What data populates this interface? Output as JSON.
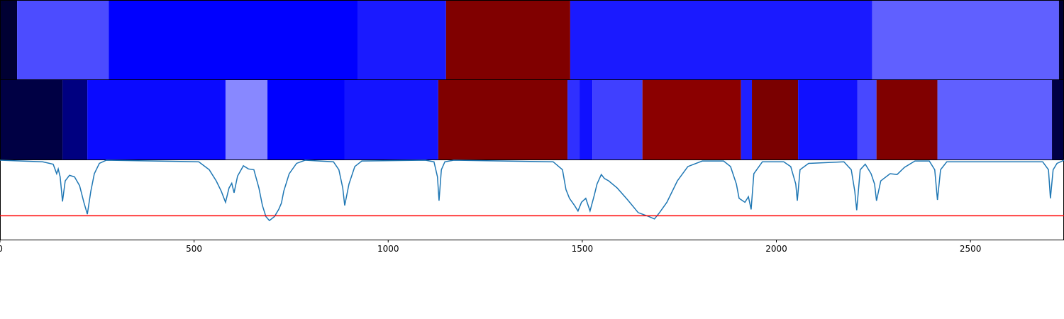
{
  "chart_data": {
    "type": "line",
    "xlim": [
      0,
      2741
    ],
    "xticks": [
      0,
      500,
      1000,
      1500,
      2000,
      2500
    ],
    "ylim": [
      0,
      1
    ],
    "bands": [
      {
        "boundaries": [
          0,
          44,
          280,
          921,
          1149,
          1469,
          2247,
          2728,
          2741
        ],
        "colors": [
          "#000033",
          "#4c4cff",
          "#0000ff",
          "#1a1aff",
          "#800000",
          "#1a1aff",
          "#6060ff",
          "#000033"
        ]
      },
      {
        "boundaries": [
          0,
          161,
          225,
          581,
          689,
          888,
          1129,
          1462,
          1493,
          1526,
          1655,
          1909,
          1937,
          2056,
          2209,
          2258,
          2415,
          2710,
          2741
        ],
        "colors": [
          "#000044",
          "#000080",
          "#0a0aff",
          "#8888ff",
          "#0000ff",
          "#1414ff",
          "#800000",
          "#3030ff",
          "#1010ff",
          "#4040ff",
          "#8b0000",
          "#2020ff",
          "#7a0000",
          "#1010ff",
          "#4848ff",
          "#800000",
          "#6060ff",
          "#000044"
        ]
      }
    ],
    "x": [
      0,
      110,
      137,
      146,
      150,
      155,
      161,
      168,
      179,
      192,
      205,
      216,
      225,
      234,
      243,
      256,
      274,
      512,
      539,
      557,
      570,
      581,
      590,
      597,
      603,
      612,
      627,
      640,
      654,
      667,
      676,
      685,
      694,
      707,
      718,
      725,
      731,
      745,
      764,
      786,
      859,
      873,
      883,
      888,
      899,
      914,
      932,
      1096,
      1118,
      1127,
      1131,
      1137,
      1146,
      1169,
      1425,
      1449,
      1458,
      1467,
      1480,
      1489,
      1498,
      1509,
      1520,
      1531,
      1538,
      1549,
      1557,
      1568,
      1590,
      1617,
      1644,
      1672,
      1686,
      1699,
      1718,
      1745,
      1772,
      1809,
      1864,
      1882,
      1897,
      1904,
      1919,
      1928,
      1935,
      1942,
      1964,
      2019,
      2037,
      2050,
      2054,
      2061,
      2083,
      2174,
      2193,
      2202,
      2207,
      2216,
      2229,
      2244,
      2253,
      2258,
      2269,
      2293,
      2311,
      2330,
      2357,
      2394,
      2408,
      2415,
      2423,
      2439,
      2686,
      2701,
      2706,
      2713,
      2723,
      2741
    ],
    "series": [
      {
        "color": "#1f77b4",
        "values": [
          1.0,
          0.98,
          0.95,
          0.83,
          0.89,
          0.79,
          0.48,
          0.74,
          0.81,
          0.79,
          0.68,
          0.47,
          0.32,
          0.61,
          0.83,
          0.96,
          1.0,
          0.98,
          0.88,
          0.74,
          0.61,
          0.47,
          0.65,
          0.71,
          0.59,
          0.8,
          0.93,
          0.89,
          0.88,
          0.65,
          0.43,
          0.29,
          0.24,
          0.29,
          0.38,
          0.46,
          0.61,
          0.83,
          0.96,
          1.0,
          0.98,
          0.88,
          0.65,
          0.43,
          0.7,
          0.92,
          0.99,
          1.0,
          0.98,
          0.79,
          0.49,
          0.88,
          0.98,
          1.0,
          0.98,
          0.88,
          0.63,
          0.52,
          0.43,
          0.36,
          0.47,
          0.52,
          0.36,
          0.56,
          0.7,
          0.82,
          0.77,
          0.74,
          0.65,
          0.5,
          0.34,
          0.29,
          0.26,
          0.34,
          0.47,
          0.74,
          0.92,
          0.99,
          0.99,
          0.92,
          0.7,
          0.52,
          0.47,
          0.54,
          0.38,
          0.83,
          0.98,
          0.98,
          0.92,
          0.7,
          0.49,
          0.88,
          0.96,
          0.98,
          0.88,
          0.61,
          0.37,
          0.88,
          0.95,
          0.83,
          0.7,
          0.49,
          0.74,
          0.83,
          0.82,
          0.91,
          0.99,
          0.99,
          0.88,
          0.5,
          0.88,
          0.98,
          0.98,
          0.88,
          0.52,
          0.88,
          0.96,
          1.0
        ]
      }
    ],
    "hline": {
      "value": 0.3,
      "color": "#ff0000"
    }
  }
}
